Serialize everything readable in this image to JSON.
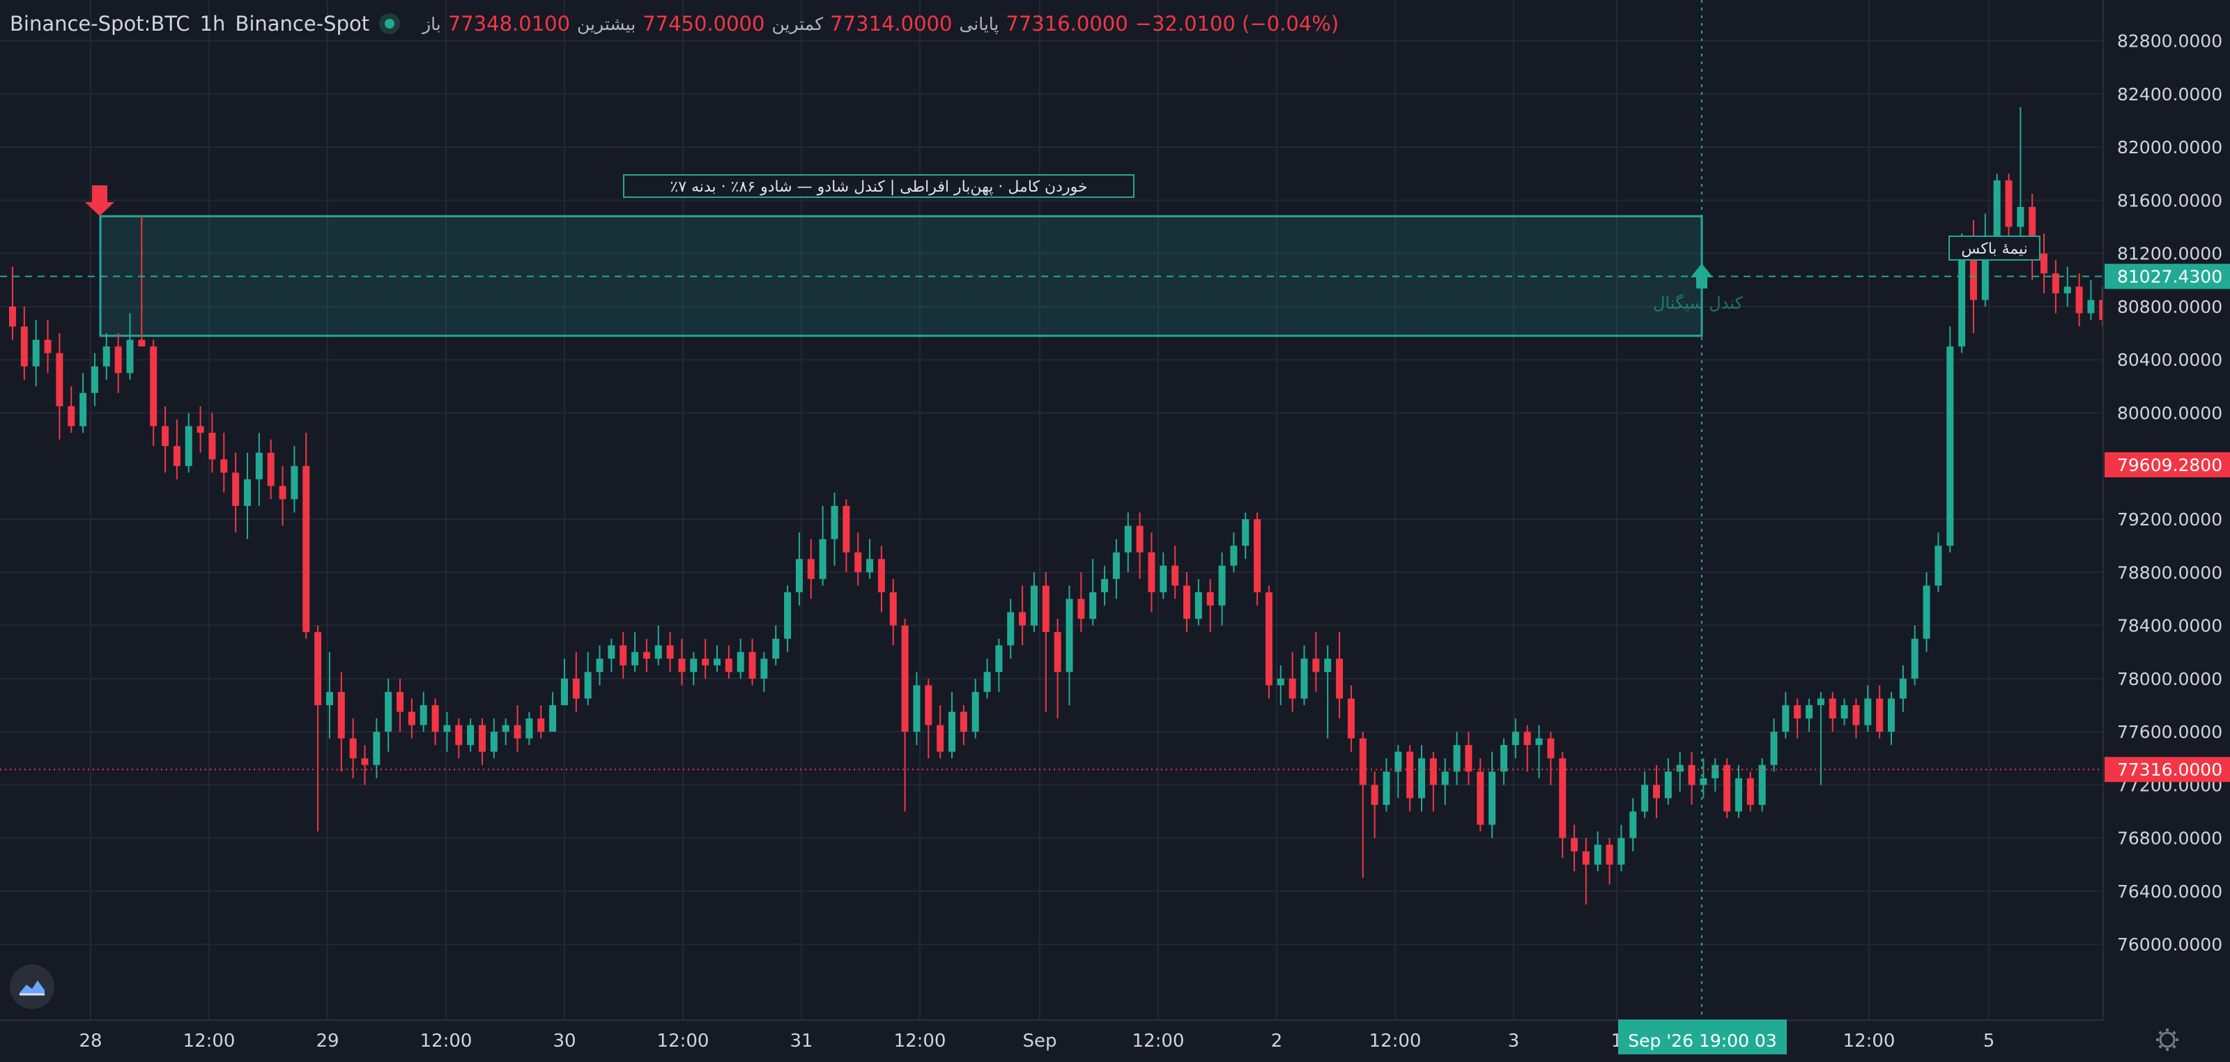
{
  "legend": {
    "symbol": "Binance-Spot:BTC",
    "interval": "1h",
    "exchange": "Binance-Spot",
    "open_label": "باز",
    "open": "77348.0100",
    "high_label": "بیشترین",
    "high": "77450.0000",
    "low_label": "کمترین",
    "low": "77314.0000",
    "close_label": "پایانی",
    "close": "77316.0000",
    "change": "−32.0100 (−0.04%)"
  },
  "colors": {
    "background": "#161a25",
    "up": "#22ab94",
    "down": "#f23645",
    "box_border": "#26a69a",
    "grid": "#232834"
  },
  "annotations": {
    "box_label": "٪خوردن کامل · پهن‌بار افراطی | کندل شادو — شادو ۸۶٪ · بدنه ۷",
    "side_label": "کندل سیگنال",
    "half_box_label": "نیمهٔ باکس"
  },
  "crosshair_label": "Sep '26  19:00 03",
  "chart_data": {
    "type": "candlestick",
    "title": "",
    "y_ticks": [
      82800,
      82400,
      82000,
      81600,
      81200,
      80800,
      80400,
      80000,
      79200,
      78800,
      78400,
      78000,
      77600,
      77200,
      76800,
      76400,
      76000
    ],
    "y_tick_labels": [
      "82800.0000",
      "82400.0000",
      "82000.0000",
      "81600.0000",
      "81200.0000",
      "80800.0000",
      "80400.0000",
      "80000.0000",
      "79200.0000",
      "78800.0000",
      "78400.0000",
      "78000.0000",
      "77600.0000",
      "77200.0000",
      "76800.0000",
      "76400.0000",
      "76000.0000"
    ],
    "x_labels": [
      "28",
      "12:00",
      "29",
      "12:00",
      "30",
      "12:00",
      "31",
      "12:00",
      "Sep",
      "12:00",
      "2",
      "12:00",
      "3",
      "1",
      "12:00",
      "5"
    ],
    "ylim": [
      75660,
      82950
    ],
    "price_tags": [
      {
        "label": "81027.4300",
        "value": 81027.43,
        "color": "#22ab94"
      },
      {
        "label": "79609.2800",
        "value": 79609.28,
        "color": "#f23645"
      },
      {
        "label": "77316.0000",
        "value": 77316.0,
        "color": "#f23645"
      }
    ],
    "box": {
      "top": 81480,
      "bottom": 80580,
      "mid": 81027.43
    },
    "candles": [
      [
        80800,
        80650,
        81100,
        80550
      ],
      [
        80650,
        80350,
        80800,
        80250
      ],
      [
        80350,
        80550,
        80700,
        80200
      ],
      [
        80550,
        80450,
        80700,
        80300
      ],
      [
        80450,
        80050,
        80600,
        79800
      ],
      [
        80050,
        79900,
        80200,
        79850
      ],
      [
        79900,
        80150,
        80300,
        79850
      ],
      [
        80150,
        80350,
        80450,
        80050
      ],
      [
        80350,
        80500,
        80600,
        80250
      ],
      [
        80500,
        80300,
        80600,
        80150
      ],
      [
        80300,
        80550,
        80750,
        80250
      ],
      [
        80550,
        80500,
        81480,
        80500
      ],
      [
        80500,
        79900,
        80550,
        79750
      ],
      [
        79900,
        79750,
        80050,
        79550
      ],
      [
        79750,
        79600,
        79950,
        79500
      ],
      [
        79600,
        79900,
        80000,
        79550
      ],
      [
        79900,
        79850,
        80050,
        79700
      ],
      [
        79850,
        79650,
        80000,
        79550
      ],
      [
        79650,
        79550,
        79850,
        79400
      ],
      [
        79550,
        79300,
        79700,
        79100
      ],
      [
        79300,
        79500,
        79700,
        79050
      ],
      [
        79500,
        79700,
        79850,
        79300
      ],
      [
        79700,
        79450,
        79800,
        79350
      ],
      [
        79450,
        79350,
        79600,
        79150
      ],
      [
        79350,
        79600,
        79750,
        79250
      ],
      [
        79600,
        78350,
        79850,
        78300
      ],
      [
        78350,
        77800,
        78400,
        76850
      ],
      [
        77800,
        77900,
        78200,
        77550
      ],
      [
        77900,
        77550,
        78050,
        77300
      ],
      [
        77550,
        77400,
        77700,
        77250
      ],
      [
        77400,
        77350,
        77500,
        77200
      ],
      [
        77350,
        77600,
        77700,
        77250
      ],
      [
        77600,
        77900,
        78000,
        77450
      ],
      [
        77900,
        77750,
        78000,
        77600
      ],
      [
        77750,
        77650,
        77850,
        77550
      ],
      [
        77650,
        77800,
        77900,
        77600
      ],
      [
        77800,
        77600,
        77850,
        77500
      ],
      [
        77600,
        77650,
        77750,
        77450
      ],
      [
        77650,
        77500,
        77700,
        77400
      ],
      [
        77500,
        77650,
        77700,
        77450
      ],
      [
        77650,
        77450,
        77700,
        77350
      ],
      [
        77450,
        77600,
        77700,
        77400
      ],
      [
        77600,
        77650,
        77700,
        77500
      ],
      [
        77650,
        77550,
        77800,
        77450
      ],
      [
        77550,
        77700,
        77750,
        77500
      ],
      [
        77700,
        77600,
        77800,
        77550
      ],
      [
        77600,
        77800,
        77900,
        77650
      ],
      [
        77800,
        78000,
        78150,
        77850
      ],
      [
        78000,
        77850,
        78200,
        77750
      ],
      [
        77850,
        78050,
        78200,
        77800
      ],
      [
        78050,
        78150,
        78250,
        77950
      ],
      [
        78150,
        78250,
        78300,
        78050
      ],
      [
        78250,
        78100,
        78350,
        78000
      ],
      [
        78100,
        78200,
        78350,
        78050
      ],
      [
        78200,
        78150,
        78300,
        78050
      ],
      [
        78150,
        78250,
        78400,
        78100
      ],
      [
        78250,
        78150,
        78350,
        78050
      ],
      [
        78150,
        78050,
        78300,
        77950
      ],
      [
        78050,
        78150,
        78200,
        77950
      ],
      [
        78150,
        78100,
        78300,
        78000
      ],
      [
        78100,
        78150,
        78250,
        78050
      ],
      [
        78150,
        78050,
        78250,
        78000
      ],
      [
        78050,
        78200,
        78300,
        78000
      ],
      [
        78200,
        78000,
        78300,
        77950
      ],
      [
        78000,
        78150,
        78200,
        77900
      ],
      [
        78150,
        78300,
        78400,
        78100
      ],
      [
        78300,
        78650,
        78700,
        78200
      ],
      [
        78650,
        78900,
        79100,
        78550
      ],
      [
        78900,
        78750,
        79050,
        78600
      ],
      [
        78750,
        79050,
        79300,
        78700
      ],
      [
        79050,
        79300,
        79400,
        78850
      ],
      [
        79300,
        78950,
        79350,
        78800
      ],
      [
        78950,
        78800,
        79100,
        78700
      ],
      [
        78800,
        78900,
        79050,
        78750
      ],
      [
        78900,
        78650,
        79000,
        78500
      ],
      [
        78650,
        78400,
        78750,
        78250
      ],
      [
        78400,
        77600,
        78450,
        77000
      ],
      [
        77600,
        77950,
        78050,
        77500
      ],
      [
        77950,
        77650,
        78000,
        77400
      ],
      [
        77650,
        77450,
        77800,
        77400
      ],
      [
        77450,
        77750,
        77900,
        77400
      ],
      [
        77750,
        77600,
        77800,
        77500
      ],
      [
        77600,
        77900,
        78000,
        77550
      ],
      [
        77900,
        78050,
        78150,
        77850
      ],
      [
        78050,
        78250,
        78300,
        77900
      ],
      [
        78250,
        78500,
        78600,
        78150
      ],
      [
        78500,
        78400,
        78700,
        78250
      ],
      [
        78400,
        78700,
        78800,
        78350
      ],
      [
        78700,
        78350,
        78800,
        77750
      ],
      [
        78350,
        78050,
        78450,
        77700
      ],
      [
        78050,
        78600,
        78700,
        77800
      ],
      [
        78600,
        78450,
        78800,
        78350
      ],
      [
        78450,
        78650,
        78900,
        78400
      ],
      [
        78650,
        78750,
        78850,
        78550
      ],
      [
        78750,
        78950,
        79050,
        78600
      ],
      [
        78950,
        79150,
        79250,
        78800
      ],
      [
        79150,
        78950,
        79250,
        78750
      ],
      [
        78950,
        78650,
        79100,
        78500
      ],
      [
        78650,
        78850,
        78950,
        78600
      ],
      [
        78850,
        78700,
        79000,
        78600
      ],
      [
        78700,
        78450,
        78800,
        78350
      ],
      [
        78450,
        78650,
        78750,
        78400
      ],
      [
        78650,
        78550,
        78750,
        78350
      ],
      [
        78550,
        78850,
        78950,
        78400
      ],
      [
        78850,
        79000,
        79100,
        78800
      ],
      [
        79000,
        79200,
        79250,
        78900
      ],
      [
        79200,
        78650,
        79250,
        78550
      ],
      [
        78650,
        77950,
        78700,
        77850
      ],
      [
        77950,
        78000,
        78100,
        77800
      ],
      [
        78000,
        77850,
        78200,
        77750
      ],
      [
        77850,
        78150,
        78250,
        77800
      ],
      [
        78150,
        78050,
        78350,
        77900
      ],
      [
        78050,
        78150,
        78250,
        77550
      ],
      [
        78150,
        77850,
        78350,
        77700
      ],
      [
        77850,
        77550,
        77950,
        77450
      ],
      [
        77550,
        77200,
        77600,
        76500
      ],
      [
        77200,
        77050,
        77300,
        76800
      ],
      [
        77050,
        77300,
        77400,
        77000
      ],
      [
        77300,
        77450,
        77500,
        77100
      ],
      [
        77450,
        77100,
        77500,
        77000
      ],
      [
        77100,
        77400,
        77500,
        77000
      ],
      [
        77400,
        77200,
        77450,
        77000
      ],
      [
        77200,
        77300,
        77400,
        77050
      ],
      [
        77300,
        77500,
        77600,
        77200
      ],
      [
        77500,
        77300,
        77600,
        77200
      ],
      [
        77300,
        76900,
        77400,
        76850
      ],
      [
        76900,
        77300,
        77450,
        76800
      ],
      [
        77300,
        77500,
        77550,
        77200
      ],
      [
        77500,
        77600,
        77700,
        77400
      ],
      [
        77600,
        77500,
        77650,
        77300
      ],
      [
        77500,
        77550,
        77650,
        77250
      ],
      [
        77550,
        77400,
        77600,
        77200
      ],
      [
        77400,
        76800,
        77450,
        76650
      ],
      [
        76800,
        76700,
        76900,
        76550
      ],
      [
        76700,
        76600,
        76800,
        76300
      ],
      [
        76600,
        76750,
        76850,
        76550
      ],
      [
        76750,
        76600,
        76800,
        76450
      ],
      [
        76600,
        76800,
        76900,
        76550
      ],
      [
        76800,
        77000,
        77100,
        76700
      ],
      [
        77000,
        77200,
        77300,
        76950
      ],
      [
        77200,
        77100,
        77350,
        76950
      ],
      [
        77100,
        77300,
        77400,
        77050
      ],
      [
        77300,
        77350,
        77450,
        77150
      ],
      [
        77350,
        77200,
        77450,
        77050
      ],
      [
        77200,
        77250,
        77400,
        77100
      ],
      [
        77250,
        77350,
        77400,
        77150
      ],
      [
        77350,
        77000,
        77400,
        76950
      ],
      [
        77000,
        77250,
        77350,
        76950
      ],
      [
        77250,
        77050,
        77300,
        77000
      ],
      [
        77050,
        77350,
        77400,
        77000
      ],
      [
        77350,
        77600,
        77700,
        77300
      ],
      [
        77600,
        77800,
        77900,
        77550
      ],
      [
        77800,
        77700,
        77850,
        77550
      ],
      [
        77700,
        77800,
        77850,
        77600
      ],
      [
        77800,
        77850,
        77900,
        77200
      ],
      [
        77850,
        77700,
        77900,
        77600
      ],
      [
        77700,
        77800,
        77850,
        77650
      ],
      [
        77800,
        77650,
        77850,
        77550
      ],
      [
        77650,
        77850,
        77950,
        77600
      ],
      [
        77850,
        77600,
        77950,
        77550
      ],
      [
        77600,
        77850,
        77900,
        77500
      ],
      [
        77850,
        78000,
        78100,
        77750
      ],
      [
        78000,
        78300,
        78400,
        77950
      ],
      [
        78300,
        78700,
        78800,
        78200
      ],
      [
        78700,
        79000,
        79100,
        78650
      ],
      [
        79000,
        80500,
        80650,
        78950
      ],
      [
        80500,
        81300,
        81350,
        80450
      ],
      [
        81300,
        80850,
        81450,
        80600
      ],
      [
        80850,
        81200,
        81500,
        80800
      ],
      [
        81200,
        81750,
        81800,
        81150
      ],
      [
        81750,
        81400,
        81800,
        81200
      ],
      [
        81400,
        81550,
        82300,
        81300
      ],
      [
        81550,
        81200,
        81650,
        81000
      ],
      [
        81200,
        81050,
        81350,
        80900
      ],
      [
        81050,
        80900,
        81150,
        80750
      ],
      [
        80900,
        80950,
        81100,
        80800
      ],
      [
        80950,
        80750,
        81050,
        80650
      ],
      [
        80750,
        80850,
        81000,
        80700
      ],
      [
        80850,
        80700,
        80950,
        80650
      ],
      [
        80700,
        80900,
        81050,
        80650
      ],
      [
        80900,
        81000,
        81150,
        80800
      ],
      [
        81000,
        80800,
        81050,
        80700
      ],
      [
        80800,
        80650,
        80900,
        80550
      ],
      [
        80650,
        81100,
        81200,
        80500
      ],
      [
        81100,
        80900,
        81200,
        80800
      ],
      [
        80900,
        81150,
        81250,
        80850
      ],
      [
        81150,
        81200,
        81400,
        81000
      ],
      [
        81200,
        79600,
        81250,
        79550
      ],
      [
        79600,
        79550,
        79700,
        79450
      ],
      [
        79550,
        78850,
        79600,
        78700
      ],
      [
        78850,
        79550,
        79650,
        78750
      ],
      [
        79550,
        79850,
        79900,
        79450
      ],
      [
        79850,
        79650,
        79900,
        79550
      ],
      [
        79650,
        79600,
        79800,
        79500
      ],
      [
        79600,
        79700,
        79800,
        79550
      ],
      [
        79700,
        79800,
        79850,
        79650
      ],
      [
        79800,
        79700,
        79850,
        79600
      ],
      [
        79700,
        79650,
        79800,
        79550
      ],
      [
        79650,
        79700,
        79750,
        79600
      ],
      [
        79700,
        79650,
        79750,
        79550
      ],
      [
        79650,
        79600,
        79700,
        79500
      ],
      [
        79600,
        79650,
        79700,
        79550
      ],
      [
        79650,
        79600,
        79700,
        79500
      ],
      [
        79600,
        79700,
        79750,
        79550
      ],
      [
        79700,
        79750,
        79800,
        79650
      ],
      [
        79750,
        79700,
        79800,
        79650
      ],
      [
        79700,
        79650,
        79750,
        79600
      ],
      [
        79650,
        79620,
        79700,
        79580
      ],
      [
        79620,
        79609,
        79650,
        79580
      ]
    ]
  }
}
